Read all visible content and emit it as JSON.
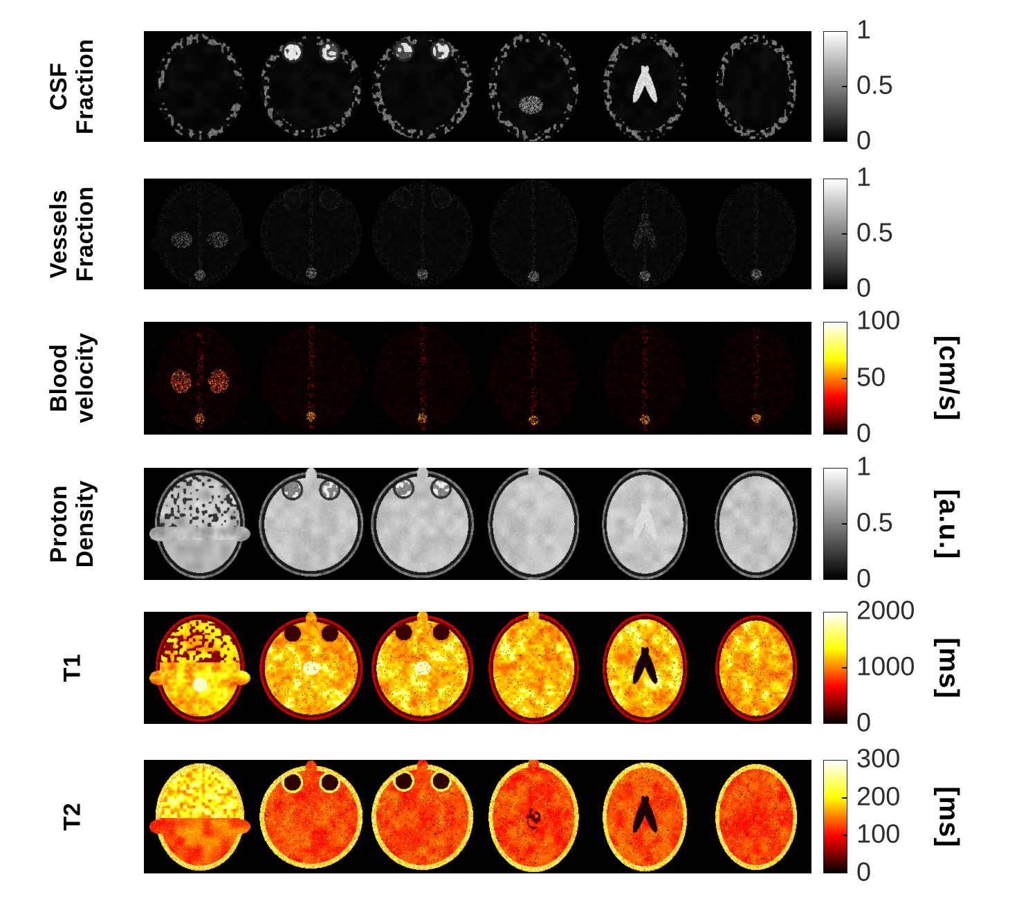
{
  "figure": {
    "background": "#ffffff",
    "panel_background": "#000000",
    "tick_text_color": "#2e2e2e",
    "label_text_color": "#000000",
    "slices_per_row": 6,
    "rows": [
      {
        "id": "csf-fraction",
        "label": "CSF\nFraction",
        "colormap": "gray",
        "ticks": [
          "1",
          "0.5",
          "0"
        ],
        "range": [
          0,
          1
        ],
        "unit": ""
      },
      {
        "id": "vessels-fraction",
        "label": "Vessels\nFraction",
        "colormap": "gray",
        "ticks": [
          "1",
          "0.5",
          "0"
        ],
        "range": [
          0,
          1
        ],
        "unit": ""
      },
      {
        "id": "blood-velocity",
        "label": "Blood\nvelocity",
        "colormap": "hot",
        "ticks": [
          "100",
          "50",
          "0"
        ],
        "range": [
          0,
          100
        ],
        "unit": "[cm/s]"
      },
      {
        "id": "proton-density",
        "label": "Proton\nDensity",
        "colormap": "gray",
        "ticks": [
          "1",
          "0.5",
          "0"
        ],
        "range": [
          0,
          1
        ],
        "unit": "[a.u.]"
      },
      {
        "id": "t1",
        "label": "T1",
        "colormap": "hot",
        "ticks": [
          "2000",
          "1000",
          "0"
        ],
        "range": [
          0,
          2000
        ],
        "unit": "[ms]"
      },
      {
        "id": "t2",
        "label": "T2",
        "colormap": "hot",
        "ticks": [
          "300",
          "200",
          "100",
          "0"
        ],
        "range": [
          0,
          300
        ],
        "unit": "[ms]"
      }
    ]
  }
}
